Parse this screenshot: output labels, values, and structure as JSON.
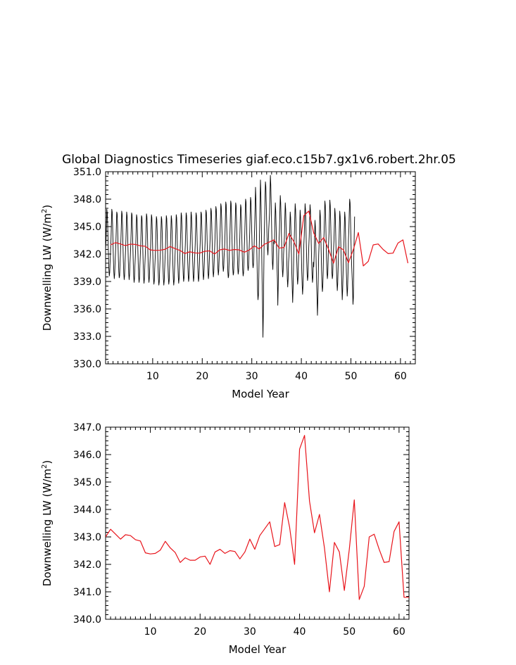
{
  "title": "Global Diagnostics Timeseries giaf.eco.c15b7.gx1v6.robert.2hr.05",
  "colors": {
    "monthly": "#000000",
    "annual": "#e8141b"
  },
  "chart_data": [
    {
      "type": "line",
      "xlabel": "Model Year",
      "ylabel_main": "Downwelling LW (W/m",
      "ylabel_sup": "2",
      "ylabel_end": ")",
      "xlim": [
        0.5,
        63
      ],
      "ylim": [
        330.0,
        351.0
      ],
      "xticks": [
        10,
        20,
        30,
        40,
        50,
        60
      ],
      "yticks": [
        "330.0",
        "333.0",
        "336.0",
        "339.0",
        "342.0",
        "345.0",
        "348.0",
        "351.0"
      ],
      "series": [
        {
          "role": "monthly",
          "color": "#000000",
          "x_start": 0.5,
          "x_step": 0.083333,
          "values": [
            342.5,
            343.4,
            345.0,
            346.9,
            346.5,
            345.3,
            343.4,
            341.6,
            340.3,
            339.6,
            340.0,
            341.2,
            342.2,
            343.4,
            345.2,
            346.9,
            346.6,
            345.1,
            343.1,
            341.3,
            340.0,
            339.3,
            339.8,
            341.1,
            342.1,
            343.3,
            344.9,
            346.6,
            346.4,
            345.2,
            343.2,
            341.4,
            340.1,
            339.4,
            339.6,
            341.0,
            342.0,
            343.4,
            345.0,
            346.7,
            346.4,
            345.1,
            343.1,
            341.2,
            339.9,
            339.2,
            339.6,
            341.0,
            342.0,
            343.2,
            344.8,
            346.6,
            346.2,
            345.0,
            343.0,
            341.2,
            339.9,
            339.2,
            339.7,
            341.0,
            341.9,
            343.1,
            344.7,
            346.5,
            346.3,
            344.8,
            342.9,
            341.0,
            339.6,
            338.9,
            339.3,
            340.7,
            341.7,
            342.9,
            344.6,
            346.3,
            346.0,
            344.7,
            342.7,
            341.0,
            339.6,
            338.9,
            339.3,
            340.7,
            341.8,
            342.9,
            344.6,
            346.2,
            346.0,
            344.6,
            342.7,
            340.9,
            339.5,
            338.8,
            339.3,
            340.7,
            341.8,
            343.0,
            344.7,
            346.4,
            346.1,
            344.8,
            342.9,
            341.0,
            339.6,
            338.9,
            339.4,
            340.7,
            341.7,
            342.9,
            344.5,
            346.3,
            346.0,
            344.6,
            342.6,
            340.8,
            339.4,
            338.7,
            339.1,
            340.5,
            341.5,
            342.7,
            344.4,
            346.1,
            345.8,
            344.5,
            342.5,
            340.7,
            339.3,
            338.6,
            339.0,
            340.4,
            341.5,
            342.7,
            344.4,
            346.1,
            345.8,
            344.5,
            342.5,
            340.6,
            339.3,
            338.6,
            339.1,
            340.4,
            341.6,
            342.7,
            344.5,
            346.2,
            345.9,
            344.5,
            342.6,
            340.8,
            339.4,
            338.7,
            339.1,
            340.5,
            341.6,
            342.8,
            344.5,
            346.2,
            345.8,
            344.5,
            342.5,
            340.7,
            339.3,
            338.6,
            339.1,
            340.4,
            341.7,
            342.9,
            344.5,
            346.3,
            346.0,
            344.6,
            342.6,
            340.9,
            339.5,
            338.8,
            339.3,
            340.6,
            341.9,
            343.1,
            344.7,
            346.5,
            346.2,
            344.8,
            342.8,
            341.0,
            339.7,
            339.0,
            339.4,
            340.8,
            341.9,
            343.0,
            344.7,
            346.5,
            346.2,
            344.8,
            342.9,
            341.0,
            339.7,
            339.0,
            339.4,
            340.8,
            341.9,
            343.2,
            344.8,
            346.6,
            346.2,
            344.9,
            342.9,
            341.1,
            339.7,
            339.0,
            339.5,
            340.8,
            341.9,
            343.1,
            344.7,
            346.5,
            346.2,
            344.8,
            342.8,
            341.0,
            339.7,
            339.0,
            339.4,
            340.7,
            342.1,
            343.2,
            344.9,
            346.6,
            346.4,
            345.0,
            343.0,
            341.2,
            339.9,
            339.2,
            339.7,
            341.0,
            342.2,
            343.4,
            345.1,
            346.8,
            346.5,
            345.2,
            343.2,
            341.4,
            340.0,
            339.3,
            339.8,
            341.1,
            342.4,
            343.6,
            345.2,
            347.0,
            346.7,
            345.4,
            343.4,
            341.6,
            340.2,
            339.5,
            340.0,
            341.3,
            342.6,
            343.8,
            345.5,
            347.2,
            346.9,
            345.6,
            343.6,
            341.8,
            340.4,
            339.7,
            340.2,
            341.5,
            342.9,
            344.1,
            345.7,
            347.5,
            347.2,
            345.9,
            343.9,
            342.1,
            340.8,
            340.1,
            340.5,
            341.8,
            342.4,
            343.9,
            345.8,
            347.7,
            347.4,
            345.7,
            343.6,
            341.6,
            340.1,
            339.4,
            339.6,
            341.1,
            342.6,
            344.0,
            345.9,
            347.8,
            347.5,
            345.8,
            343.8,
            341.9,
            340.4,
            339.7,
            339.9,
            341.4,
            342.7,
            344.0,
            345.8,
            347.6,
            347.3,
            345.8,
            343.8,
            341.9,
            340.5,
            339.8,
            340.1,
            341.4,
            342.5,
            343.8,
            345.6,
            347.4,
            347.1,
            345.6,
            343.6,
            341.7,
            340.3,
            339.6,
            339.9,
            341.3,
            342.9,
            344.2,
            346.1,
            348.0,
            347.7,
            346.1,
            344.1,
            342.2,
            340.8,
            340.2,
            340.5,
            341.8,
            343.1,
            344.4,
            346.3,
            348.2,
            347.8,
            346.2,
            344.3,
            342.5,
            341.1,
            340.5,
            340.8,
            342.0,
            343.5,
            345.0,
            347.0,
            349.3,
            348.0,
            345.6,
            342.8,
            340.3,
            338.0,
            337.0,
            337.5,
            339.5,
            342.8,
            345.0,
            347.8,
            350.1,
            348.5,
            345.6,
            342.2,
            339.0,
            336.5,
            332.9,
            335.5,
            339.6,
            343.8,
            345.7,
            348.0,
            349.9,
            349.4,
            347.6,
            345.6,
            343.8,
            342.6,
            341.9,
            342.9,
            344.7,
            345.6,
            346.5,
            348.5,
            350.6,
            349.6,
            347.5,
            345.1,
            342.8,
            341.0,
            340.3,
            341.6,
            343.4,
            343.1,
            343.6,
            345.7,
            347.6,
            346.7,
            344.9,
            342.6,
            340.7,
            339.2,
            336.4,
            338.5,
            341.8,
            343.5,
            344.6,
            346.6,
            348.4,
            347.6,
            345.8,
            343.7,
            341.8,
            340.3,
            339.5,
            340.3,
            342.0,
            342.9,
            343.9,
            345.8,
            347.6,
            346.9,
            345.0,
            342.8,
            340.8,
            339.3,
            338.4,
            339.3,
            341.1,
            341.8,
            342.9,
            344.8,
            346.6,
            346.0,
            344.2,
            341.9,
            339.8,
            338.2,
            336.7,
            338.2,
            340.4,
            343.0,
            343.9,
            345.8,
            347.5,
            346.9,
            345.2,
            343.0,
            341.1,
            339.6,
            338.7,
            339.4,
            341.2,
            342.1,
            343.1,
            345.0,
            346.8,
            346.1,
            344.3,
            342.1,
            340.1,
            338.6,
            337.6,
            338.5,
            340.2,
            343.0,
            344.0,
            345.8,
            347.5,
            346.9,
            345.2,
            343.1,
            341.2,
            339.8,
            339.1,
            339.6,
            341.3,
            342.8,
            343.9,
            345.7,
            347.4,
            346.8,
            345.1,
            343.0,
            341.1,
            339.7,
            338.9,
            339.5,
            341.1,
            340.6,
            341.8,
            343.8,
            345.7,
            345.0,
            343.1,
            340.8,
            338.7,
            337.2,
            335.3,
            337.0,
            339.4,
            341.9,
            343.1,
            345.0,
            346.8,
            346.2,
            344.5,
            342.2,
            340.2,
            338.7,
            337.9,
            338.5,
            340.3,
            343.1,
            344.3,
            346.1,
            347.8,
            347.3,
            345.6,
            343.5,
            341.5,
            340.1,
            339.3,
            339.8,
            341.6,
            343.2,
            344.3,
            346.1,
            347.9,
            347.3,
            345.6,
            343.4,
            341.5,
            340.0,
            339.3,
            339.7,
            341.4,
            342.6,
            343.5,
            345.2,
            347.0,
            346.4,
            344.7,
            342.5,
            340.6,
            339.1,
            338.0,
            338.7,
            340.4,
            342.1,
            343.0,
            344.9,
            346.7,
            346.1,
            344.3,
            342.1,
            340.2,
            338.7,
            337.0,
            338.0,
            339.8,
            342.2,
            343.0,
            344.9,
            346.6,
            346.0,
            344.2,
            342.0,
            340.1,
            338.6,
            337.4,
            338.2,
            340.0,
            343.5,
            344.6,
            346.5,
            348.0,
            347.6,
            345.9,
            343.8,
            342.0,
            340.6,
            339.4,
            338.2,
            336.5,
            337.2,
            341.6,
            344.0,
            346.1
          ]
        },
        {
          "role": "annual",
          "color": "#e8141b",
          "x": [
            1.5,
            2.5,
            3.5,
            4.5,
            5.5,
            6.5,
            7.5,
            8.5,
            9.5,
            10.5,
            11.5,
            12.5,
            13.5,
            14.5,
            15.5,
            16.5,
            17.5,
            18.5,
            19.5,
            20.5,
            21.5,
            22.5,
            23.5,
            24.5,
            25.5,
            26.5,
            27.5,
            28.5,
            29.5,
            30.5,
            31.5,
            32.5,
            33.5,
            34.5,
            35.5,
            36.5,
            37.5,
            38.5,
            39.5,
            40.5,
            41.5,
            42.5,
            43.5,
            44.5,
            45.5,
            46.5,
            47.5,
            48.5,
            49.5,
            50.5,
            51.5,
            52.5,
            53.5,
            54.5,
            55.5,
            56.5,
            57.5,
            58.5,
            59.5,
            60.5,
            61.5
          ],
          "values": [
            343.0,
            343.25,
            343.1,
            342.92,
            343.08,
            343.05,
            342.9,
            342.85,
            342.45,
            342.4,
            342.42,
            342.52,
            342.82,
            342.6,
            342.4,
            342.05,
            342.25,
            342.12,
            342.1,
            342.3,
            342.35,
            342.0,
            342.45,
            342.55,
            342.4,
            342.5,
            342.45,
            342.2,
            342.45,
            342.9,
            342.55,
            343.05,
            343.3,
            343.55,
            342.65,
            342.72,
            344.25,
            343.35,
            342.0,
            346.2,
            346.7,
            344.3,
            343.15,
            343.8,
            342.5,
            341.0,
            342.8,
            342.45,
            341.05,
            342.5,
            344.35,
            340.7,
            341.2,
            343.0,
            343.1,
            342.5,
            342.05,
            342.1,
            343.2,
            343.55,
            341.0
          ]
        }
      ]
    },
    {
      "type": "line",
      "xlabel": "Model Year",
      "ylabel_main": "Downwelling LW (W/m",
      "ylabel_sup": "2",
      "ylabel_end": ")",
      "xlim": [
        1,
        62
      ],
      "ylim": [
        340.0,
        347.0
      ],
      "xticks": [
        10,
        20,
        30,
        40,
        50,
        60
      ],
      "yticks": [
        "340.0",
        "341.0",
        "342.0",
        "343.0",
        "344.0",
        "345.0",
        "346.0",
        "347.0"
      ],
      "series": [
        {
          "role": "annual",
          "color": "#e8141b",
          "x": [
            1.0,
            2.0,
            3.0,
            4.0,
            5.0,
            6.0,
            7.0,
            8.0,
            9.0,
            10.0,
            11.0,
            12.0,
            13.0,
            14.0,
            15.0,
            16.0,
            17.0,
            18.0,
            19.0,
            20.0,
            21.0,
            22.0,
            23.0,
            24.0,
            25.0,
            26.0,
            27.0,
            28.0,
            29.0,
            30.0,
            31.0,
            32.0,
            33.0,
            34.0,
            35.0,
            36.0,
            37.0,
            38.0,
            39.0,
            40.0,
            41.0,
            42.0,
            43.0,
            44.0,
            45.0,
            46.0,
            47.0,
            48.0,
            49.0,
            50.0,
            51.0,
            52.0,
            53.0,
            54.0,
            55.0,
            56.0,
            57.0,
            58.0,
            59.0,
            60.0,
            61.0,
            62.0
          ],
          "values": [
            343.0,
            343.28,
            343.1,
            342.92,
            343.08,
            343.05,
            342.9,
            342.85,
            342.42,
            342.38,
            342.4,
            342.52,
            342.84,
            342.6,
            342.43,
            342.07,
            342.24,
            342.15,
            342.15,
            342.27,
            342.3,
            342.0,
            342.45,
            342.55,
            342.4,
            342.5,
            342.47,
            342.2,
            342.45,
            342.92,
            342.55,
            343.05,
            343.3,
            343.55,
            342.65,
            342.72,
            344.25,
            343.35,
            342.0,
            346.2,
            346.7,
            344.3,
            343.15,
            343.82,
            342.6,
            341.0,
            342.8,
            342.45,
            341.05,
            342.55,
            344.35,
            340.72,
            341.2,
            343.0,
            343.1,
            342.55,
            342.07,
            342.1,
            343.2,
            343.55,
            340.8,
            340.8
          ]
        }
      ]
    }
  ]
}
